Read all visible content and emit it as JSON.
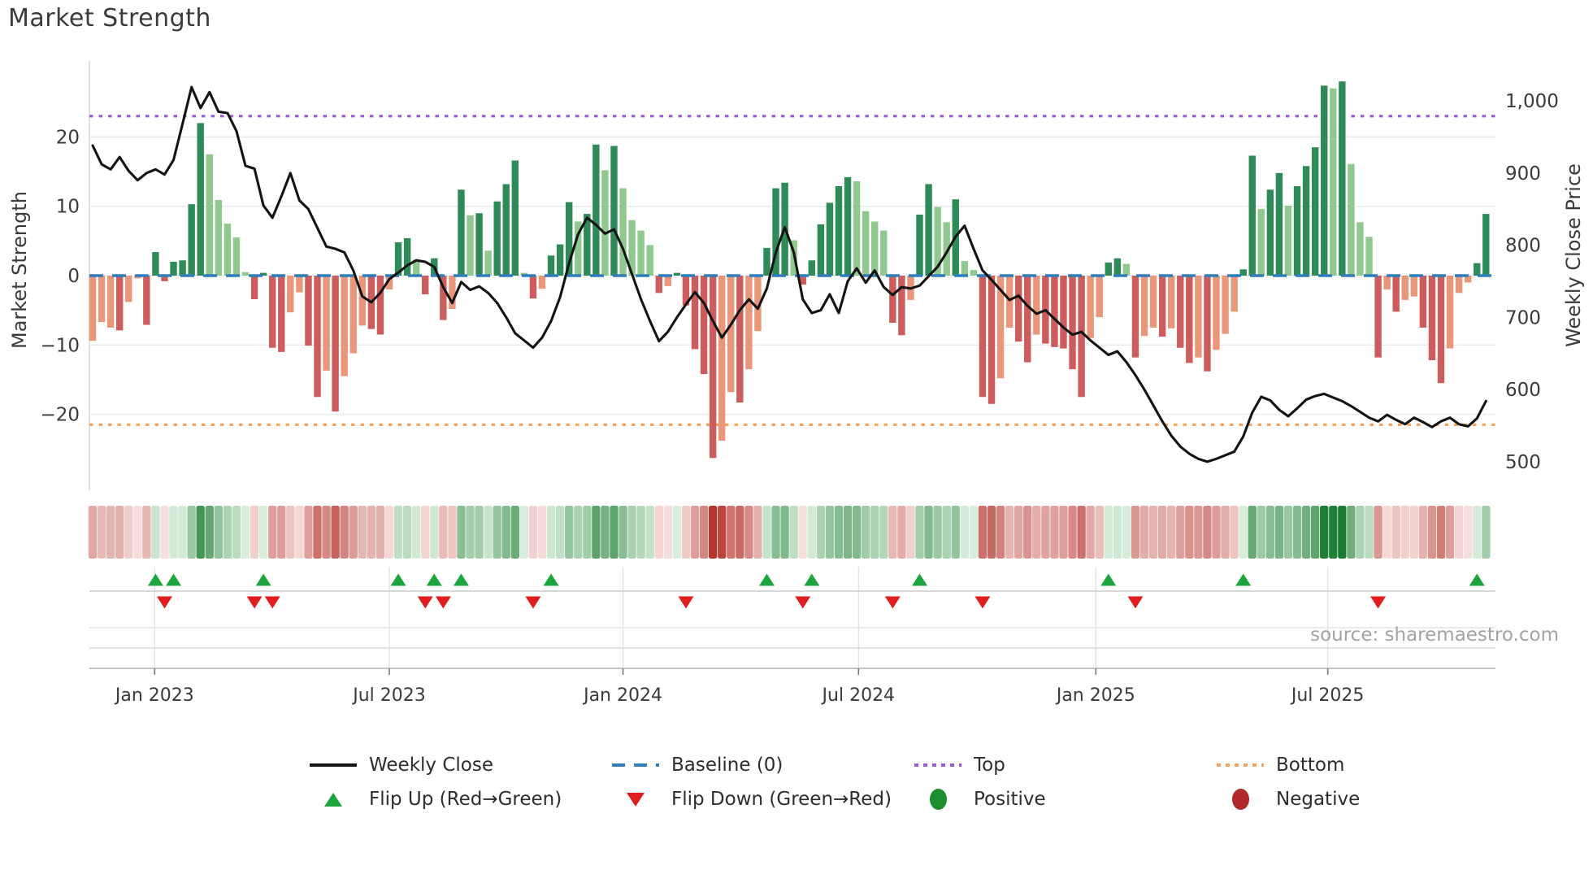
{
  "title": "Market Strength",
  "source_note": "source: sharemaestro.com",
  "axes": {
    "left_label": "Market Strength",
    "right_label": "Weekly Close Price",
    "left_ticks": [
      "20",
      "10",
      "0",
      "−10",
      "−20"
    ],
    "left_tick_values": [
      20,
      10,
      0,
      -10,
      -20
    ],
    "right_ticks": [
      "1,000",
      "900",
      "800",
      "700",
      "600",
      "500"
    ],
    "right_tick_values": [
      1000,
      900,
      800,
      700,
      600,
      500
    ],
    "x_ticks": [
      "Jan 2023",
      "Jul 2023",
      "Jan 2024",
      "Jul 2024",
      "Jan 2025",
      "Jul 2025"
    ],
    "x_tick_weeks": [
      6.9,
      33.0,
      59.0,
      85.2,
      111.6,
      137.4
    ]
  },
  "colors": {
    "bar_pos_strong": "#2e8b57",
    "bar_pos_soft": "#90c98e",
    "bar_neg_strong": "#cd5c5c",
    "bar_neg_soft": "#e9967a",
    "price_line": "#141414",
    "baseline": "#2e7ebc",
    "top_line": "#9b59d6",
    "bottom_line": "#f4a460",
    "flip_up": "#1ca53c",
    "flip_down": "#e01e1e",
    "positive_dot": "#1e8e2e",
    "negative_dot": "#b02a2a",
    "grid": "#e8e8ef",
    "spine": "#c6c6c6",
    "tick_text": "#3a3a3a"
  },
  "legend": {
    "rows": [
      [
        {
          "swatch": "line",
          "label": "Weekly Close"
        },
        {
          "swatch": "dash-blue",
          "label": "Baseline (0)"
        },
        {
          "swatch": "dot-purple",
          "label": "Top"
        },
        {
          "swatch": "dot-orange",
          "label": "Bottom"
        }
      ],
      [
        {
          "swatch": "tri-up",
          "label": "Flip Up (Red→Green)"
        },
        {
          "swatch": "tri-down",
          "label": "Flip Down (Green→Red)"
        },
        {
          "swatch": "dot-green",
          "label": "Positive"
        },
        {
          "swatch": "dot-red",
          "label": "Negative"
        }
      ]
    ]
  },
  "chart_data": {
    "type": "bar+line",
    "title": "Market Strength",
    "weeks": 156,
    "x_range_note": "weekly data, ~Nov 2022 to ~Oct 2025",
    "baseline": 0,
    "top_line": 23,
    "bottom_line": -21.5,
    "left_axis_range": [
      -31,
      31
    ],
    "right_axis_range": [
      460,
      1055
    ],
    "grid": true,
    "legend_position": "bottom",
    "strength": [
      -9.4,
      -6.7,
      -7.5,
      -7.9,
      -3.8,
      -0.4,
      -7.1,
      3.4,
      -0.8,
      2.0,
      2.2,
      10.3,
      22.0,
      17.5,
      10.9,
      7.5,
      5.5,
      0.5,
      -3.4,
      0.4,
      -10.4,
      -11.0,
      -5.3,
      -2.4,
      -10.1,
      -17.5,
      -13.7,
      -19.6,
      -14.5,
      -11.2,
      -7.2,
      -7.7,
      -8.5,
      -2.0,
      4.8,
      5.4,
      2.3,
      -2.7,
      2.5,
      -6.4,
      -4.8,
      12.4,
      8.7,
      9.0,
      3.6,
      10.7,
      13.2,
      16.6,
      0.4,
      -3.3,
      -1.9,
      2.9,
      4.5,
      10.6,
      7.8,
      8.9,
      18.9,
      15.2,
      18.7,
      12.6,
      8.0,
      6.5,
      4.4,
      -2.5,
      -1.5,
      0.4,
      -4.3,
      -10.6,
      -14.2,
      -26.3,
      -23.8,
      -16.8,
      -18.3,
      -13.5,
      -8.0,
      4.0,
      12.6,
      13.4,
      5.1,
      -1.3,
      2.2,
      7.4,
      10.5,
      12.9,
      14.2,
      13.6,
      9.3,
      7.8,
      6.5,
      -6.8,
      -8.6,
      -3.5,
      8.8,
      13.2,
      9.9,
      7.7,
      11.0,
      2.1,
      0.8,
      -17.5,
      -18.5,
      -14.8,
      -7.5,
      -9.5,
      -12.5,
      -8.5,
      -9.8,
      -10.3,
      -10.5,
      -13.5,
      -17.5,
      -9.0,
      -6.0,
      1.9,
      2.5,
      1.7,
      -11.8,
      -8.7,
      -7.5,
      -8.8,
      -7.6,
      -10.4,
      -12.6,
      -11.8,
      -13.8,
      -10.7,
      -8.4,
      -5.2,
      0.9,
      17.3,
      9.6,
      12.4,
      14.8,
      10.1,
      12.9,
      15.8,
      18.5,
      27.4,
      27.0,
      28.0,
      16.1,
      7.7,
      5.6,
      -11.8,
      -2.0,
      -5.2,
      -3.5,
      -3.0,
      -7.5,
      -12.2,
      -15.5,
      -10.5,
      -2.5,
      -1.0,
      1.8,
      8.9
    ],
    "strength_shade": [
      0,
      0,
      0,
      1,
      0,
      0,
      1,
      1,
      1,
      1,
      1,
      1,
      1,
      0,
      0,
      0,
      0,
      0,
      1,
      1,
      1,
      1,
      0,
      0,
      1,
      1,
      0,
      1,
      0,
      0,
      0,
      1,
      1,
      0,
      1,
      1,
      0,
      1,
      1,
      1,
      0,
      1,
      0,
      1,
      0,
      1,
      1,
      1,
      0,
      1,
      0,
      1,
      1,
      1,
      0,
      1,
      1,
      0,
      1,
      0,
      0,
      0,
      0,
      1,
      0,
      1,
      1,
      1,
      1,
      1,
      0,
      0,
      1,
      0,
      0,
      1,
      1,
      1,
      0,
      1,
      1,
      1,
      1,
      1,
      1,
      0,
      0,
      0,
      0,
      1,
      1,
      0,
      1,
      1,
      0,
      0,
      1,
      0,
      0,
      1,
      1,
      0,
      0,
      1,
      1,
      0,
      1,
      1,
      1,
      1,
      1,
      0,
      0,
      1,
      1,
      0,
      1,
      0,
      0,
      1,
      0,
      1,
      1,
      0,
      1,
      0,
      0,
      0,
      1,
      1,
      0,
      1,
      1,
      0,
      1,
      1,
      1,
      1,
      0,
      1,
      0,
      0,
      0,
      1,
      0,
      1,
      0,
      0,
      1,
      1,
      1,
      0,
      0,
      0,
      1,
      1
    ],
    "price": [
      938,
      912,
      905,
      922,
      903,
      890,
      900,
      905,
      898,
      918,
      968,
      1019,
      990,
      1012,
      985,
      983,
      958,
      910,
      906,
      855,
      838,
      868,
      900,
      862,
      850,
      824,
      798,
      795,
      790,
      765,
      729,
      721,
      734,
      753,
      762,
      772,
      779,
      777,
      770,
      742,
      720,
      749,
      738,
      743,
      734,
      720,
      700,
      678,
      668,
      658,
      672,
      695,
      728,
      775,
      815,
      838,
      828,
      816,
      822,
      795,
      760,
      725,
      695,
      667,
      680,
      700,
      718,
      735,
      720,
      695,
      672,
      690,
      710,
      725,
      712,
      740,
      790,
      825,
      790,
      725,
      706,
      710,
      732,
      706,
      750,
      768,
      748,
      765,
      742,
      731,
      742,
      740,
      744,
      757,
      770,
      790,
      812,
      827,
      795,
      765,
      752,
      738,
      724,
      730,
      716,
      705,
      710,
      698,
      686,
      676,
      680,
      668,
      658,
      648,
      653,
      638,
      620,
      600,
      578,
      556,
      536,
      521,
      511,
      504,
      500,
      504,
      509,
      514,
      535,
      568,
      590,
      585,
      572,
      563,
      574,
      586,
      591,
      594,
      589,
      584,
      577,
      569,
      561,
      556,
      565,
      558,
      552,
      561,
      555,
      548,
      556,
      561,
      552,
      549,
      560,
      584
    ],
    "flip_up_weeks": [
      7,
      9,
      19,
      34,
      38,
      41,
      51,
      75,
      80,
      92,
      113,
      128,
      154
    ],
    "flip_down_weeks": [
      8,
      18,
      20,
      37,
      39,
      49,
      66,
      79,
      89,
      99,
      116,
      143
    ]
  }
}
